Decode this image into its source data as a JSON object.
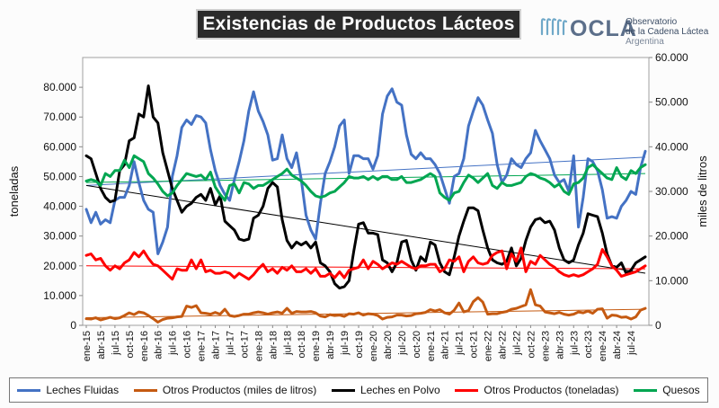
{
  "header": {
    "title": "Existencias de Productos Lácteos"
  },
  "logo": {
    "brand": "OCLA",
    "line1": "Observatorio",
    "line2": "de la Cadena Láctea",
    "line3": "Argentina"
  },
  "chart_data": {
    "type": "line",
    "title": "Existencias de Productos Lácteos",
    "ylabel_left": "toneladas",
    "ylabel_right": "miles de litros",
    "ylim_left": [
      0,
      90000
    ],
    "ylim_right": [
      0,
      60000
    ],
    "yticks_left": [
      "0",
      "10.000",
      "20.000",
      "30.000",
      "40.000",
      "50.000",
      "60.000",
      "70.000",
      "80.000"
    ],
    "yticks_right": [
      "0",
      "10.000",
      "20.000",
      "30.000",
      "40.000",
      "50.000",
      "60.000"
    ],
    "xtick_labels": [
      "ene-15",
      "abr-15",
      "jul-15",
      "oct-15",
      "ene-16",
      "abr-16",
      "jul-16",
      "oct-16",
      "ene-17",
      "abr-17",
      "jul-17",
      "oct-17",
      "ene-18",
      "abr-18",
      "jul-18",
      "oct-18",
      "ene-19",
      "abr-19",
      "jul-19",
      "oct-19",
      "ene-20",
      "abr-20",
      "jul-20",
      "oct-20",
      "ene-21",
      "abr-21",
      "jul-21",
      "oct-21",
      "ene-22",
      "abr-22",
      "jul-22",
      "oct-22",
      "ene-23",
      "abr-23",
      "jul-23",
      "oct-23",
      "ene-24",
      "abr-24",
      "jul-24"
    ],
    "x_start": "ene-15",
    "x_step_months": 1,
    "grid": false,
    "legend_position": "bottom",
    "series": [
      {
        "name": "Leches Fluidas",
        "axis": "left",
        "color": "#4472c4",
        "values": [
          39000,
          34500,
          38000,
          34000,
          35500,
          34500,
          42000,
          43000,
          43000,
          47000,
          55000,
          48000,
          42000,
          39000,
          38000,
          24000,
          28000,
          33000,
          50000,
          57000,
          66500,
          69000,
          67500,
          70500,
          70000,
          68000,
          59000,
          52000,
          47000,
          44000,
          42000,
          49000,
          55000,
          62000,
          72000,
          78500,
          72000,
          68500,
          64000,
          55500,
          56000,
          64000,
          56000,
          53000,
          58000,
          49000,
          37000,
          32000,
          29000,
          41000,
          51000,
          55000,
          60000,
          67000,
          69000,
          51000,
          57000,
          57000,
          56000,
          56000,
          52500,
          57000,
          71000,
          77000,
          79500,
          75000,
          74000,
          64000,
          57500,
          56000,
          58000,
          56000,
          56000,
          54000,
          51000,
          46000,
          41000,
          50000,
          51000,
          56000,
          67000,
          72000,
          76500,
          74000,
          69000,
          64500,
          54000,
          48000,
          50500,
          56000,
          54000,
          53000,
          56000,
          58000,
          65500,
          62000,
          59000,
          56000,
          50500,
          48000,
          49000,
          45000,
          57000,
          33000,
          43000,
          56000,
          55000,
          52000,
          45500,
          36000,
          36500,
          36000,
          40000,
          42000,
          45000,
          44000,
          53000,
          58500
        ]
      },
      {
        "name": "Otros Productos (miles de litros)",
        "axis": "right",
        "color": "#c55a11",
        "values": [
          1500,
          1400,
          1700,
          1200,
          1500,
          1800,
          1500,
          1700,
          2200,
          2800,
          2400,
          3000,
          2800,
          2200,
          1500,
          700,
          1300,
          1600,
          1700,
          1900,
          2000,
          4300,
          4000,
          4400,
          2800,
          2700,
          2500,
          2900,
          2500,
          3600,
          2200,
          2000,
          2200,
          2500,
          2500,
          2800,
          3000,
          2800,
          2500,
          2800,
          3000,
          2700,
          3800,
          2700,
          3100,
          3000,
          3000,
          3100,
          2800,
          2100,
          1900,
          2400,
          2200,
          2300,
          2000,
          2600,
          2500,
          2800,
          2300,
          2600,
          2500,
          2200,
          1400,
          1800,
          1900,
          2300,
          2300,
          2100,
          2200,
          2600,
          2700,
          2900,
          3500,
          3200,
          3500,
          2800,
          2500,
          3400,
          5000,
          3000,
          3300,
          5300,
          6200,
          5200,
          2500,
          2600,
          2600,
          2900,
          3100,
          3600,
          3800,
          4200,
          4600,
          8000,
          4600,
          4300,
          3000,
          2800,
          2600,
          2900,
          2500,
          2300,
          2500,
          3000,
          2800,
          3200,
          2700,
          3600,
          3700,
          1600,
          2300,
          2200,
          1800,
          1900,
          1400,
          1900,
          3400,
          3800
        ]
      },
      {
        "name": "Leches en Polvo",
        "axis": "left",
        "color": "#000000",
        "values": [
          57000,
          56000,
          51000,
          46000,
          43000,
          41500,
          42000,
          52000,
          54000,
          62000,
          63000,
          71000,
          70000,
          80500,
          70000,
          68000,
          58000,
          52000,
          46000,
          42000,
          38000,
          40000,
          41000,
          43000,
          44000,
          42000,
          46000,
          40500,
          43500,
          35000,
          33500,
          32000,
          29000,
          28500,
          29000,
          36000,
          37000,
          40000,
          46000,
          48000,
          46500,
          35500,
          28500,
          26000,
          28000,
          27000,
          28000,
          26000,
          28000,
          21000,
          20000,
          18000,
          14000,
          12500,
          13000,
          15000,
          25000,
          34000,
          34500,
          31000,
          31000,
          30500,
          22000,
          21000,
          18000,
          21000,
          28000,
          28500,
          22000,
          18500,
          23000,
          21500,
          28000,
          27000,
          21000,
          18000,
          17000,
          23000,
          30000,
          35000,
          39500,
          39500,
          38500,
          32000,
          26000,
          22000,
          21000,
          20500,
          21500,
          26000,
          20000,
          22500,
          28500,
          33000,
          35500,
          36000,
          34500,
          35000,
          32000,
          26000,
          22000,
          21000,
          22000,
          27000,
          31000,
          37500,
          37000,
          36500,
          31000,
          24000,
          20000,
          19500,
          21000,
          17500,
          18500,
          21000,
          22000,
          23000
        ]
      },
      {
        "name": "Otros Productos (toneladas)",
        "axis": "left",
        "color": "#ff0000",
        "values": [
          23500,
          24000,
          22000,
          22500,
          20000,
          18500,
          20000,
          19000,
          21000,
          22000,
          24500,
          23000,
          25000,
          22500,
          20500,
          20000,
          18500,
          17000,
          15500,
          19000,
          18500,
          18500,
          22000,
          19000,
          22000,
          18000,
          18500,
          17500,
          17500,
          18000,
          17500,
          16000,
          17500,
          16500,
          15500,
          17000,
          19000,
          20500,
          18000,
          19000,
          17500,
          19500,
          18500,
          20000,
          18000,
          18000,
          19000,
          17500,
          19000,
          16500,
          16500,
          17500,
          16000,
          18000,
          16000,
          18500,
          19000,
          19500,
          22000,
          19000,
          21500,
          20500,
          19000,
          20000,
          21000,
          20500,
          21500,
          20500,
          19500,
          19000,
          20000,
          20000,
          20500,
          20500,
          18000,
          19000,
          22000,
          21500,
          23000,
          18000,
          21500,
          23000,
          21000,
          20500,
          21000,
          23500,
          24500,
          25000,
          19000,
          24000,
          21500,
          26000,
          18000,
          21500,
          20500,
          23500,
          22000,
          20500,
          19500,
          18000,
          17000,
          16500,
          17000,
          16500,
          17000,
          18000,
          19000,
          20500,
          25500,
          23000,
          20000,
          18500,
          16500,
          17000,
          17500,
          18000,
          19000,
          20000
        ]
      },
      {
        "name": "Quesos",
        "axis": "left",
        "color": "#00a651",
        "values": [
          48500,
          49000,
          48500,
          47000,
          51000,
          50000,
          52000,
          52000,
          55500,
          53000,
          57000,
          56000,
          55000,
          51000,
          49500,
          47500,
          45000,
          43500,
          44500,
          47000,
          49000,
          51000,
          50500,
          50000,
          50500,
          49000,
          51500,
          46500,
          44000,
          42000,
          47000,
          47500,
          44500,
          48000,
          47500,
          46000,
          47000,
          47000,
          48000,
          49000,
          50000,
          51000,
          52500,
          50500,
          49500,
          48500,
          47000,
          45000,
          43500,
          43000,
          43500,
          44500,
          45000,
          46500,
          48000,
          50000,
          49500,
          49500,
          50000,
          49000,
          50000,
          49000,
          50000,
          50000,
          49000,
          49000,
          50000,
          48000,
          48000,
          48500,
          49000,
          50000,
          51000,
          50000,
          44500,
          43000,
          42000,
          44500,
          45000,
          48000,
          50500,
          49500,
          48000,
          49500,
          51000,
          47000,
          46000,
          48000,
          47000,
          47000,
          47500,
          48000,
          50000,
          51000,
          50500,
          49500,
          49000,
          48000,
          46500,
          47500,
          45000,
          44000,
          47500,
          48000,
          49500,
          53000,
          54000,
          52500,
          51000,
          49500,
          49000,
          53000,
          50000,
          49000,
          52000,
          51000,
          53000,
          54000
        ]
      }
    ],
    "trendlines": [
      {
        "series": "Leches Fluidas",
        "color": "#4472c4",
        "start": 47000,
        "end": 56500
      },
      {
        "series": "Leches en Polvo",
        "color": "#000000",
        "start": 47000,
        "end": 17500
      },
      {
        "series": "Otros Productos (toneladas)",
        "color": "#ff0000",
        "start": 20000,
        "end": 19000
      },
      {
        "series": "Otros Productos (miles de litros)",
        "color": "#c55a11",
        "start": 1700,
        "end": 3600
      },
      {
        "series": "Quesos",
        "color": "#00a651",
        "start": 48000,
        "end": 51000
      }
    ]
  }
}
